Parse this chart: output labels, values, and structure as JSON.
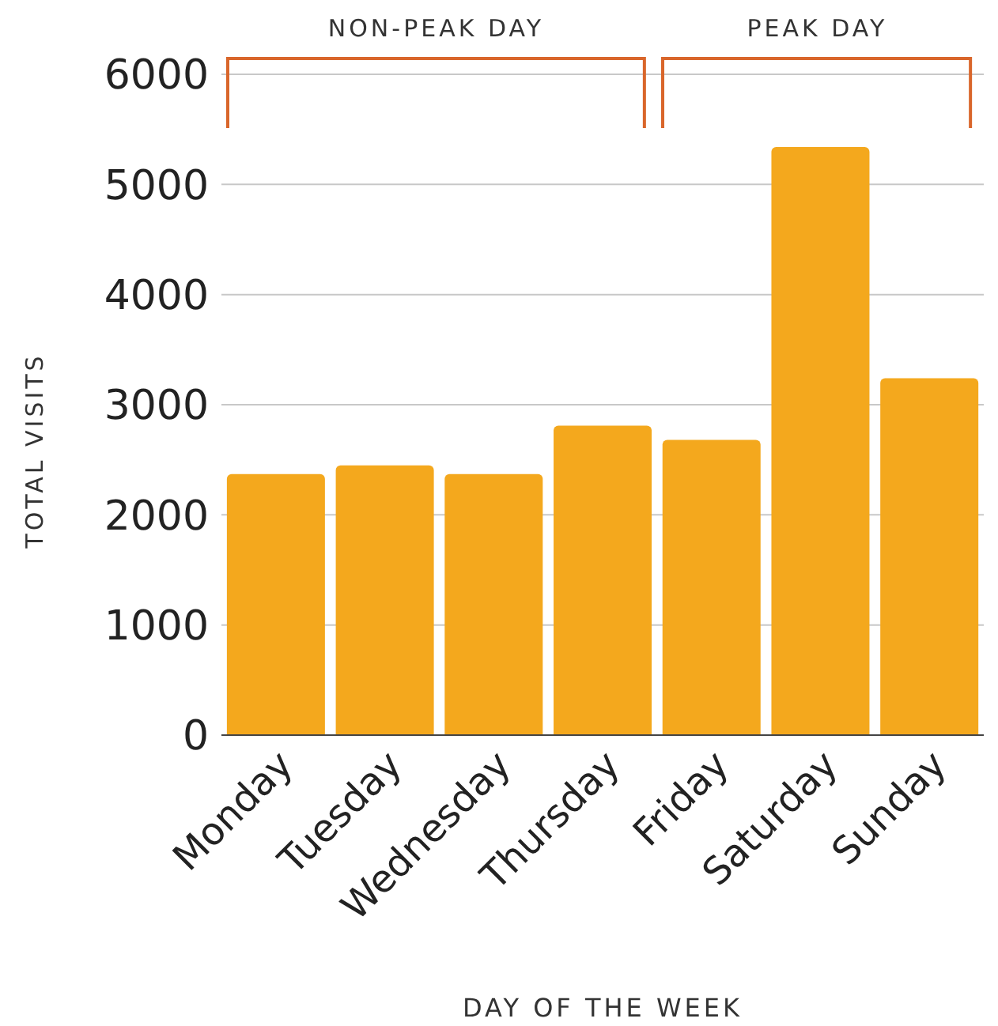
{
  "chart_data": {
    "type": "bar",
    "xlabel": "DAY OF THE WEEK",
    "ylabel": "TOTAL VISITS",
    "categories": [
      "Monday",
      "Tuesday",
      "Wednesday",
      "Thursday",
      "Friday",
      "Saturday",
      "Sunday"
    ],
    "values": [
      2370,
      2450,
      2370,
      2810,
      2680,
      5340,
      3240
    ],
    "color": "#f4a81d",
    "ylim": [
      0,
      6000
    ],
    "yticks": [
      0,
      1000,
      2000,
      3000,
      4000,
      5000,
      6000
    ],
    "grid": "y",
    "annotations": [
      "NON-PEAK DAY",
      "PEAK DAY"
    ]
  }
}
